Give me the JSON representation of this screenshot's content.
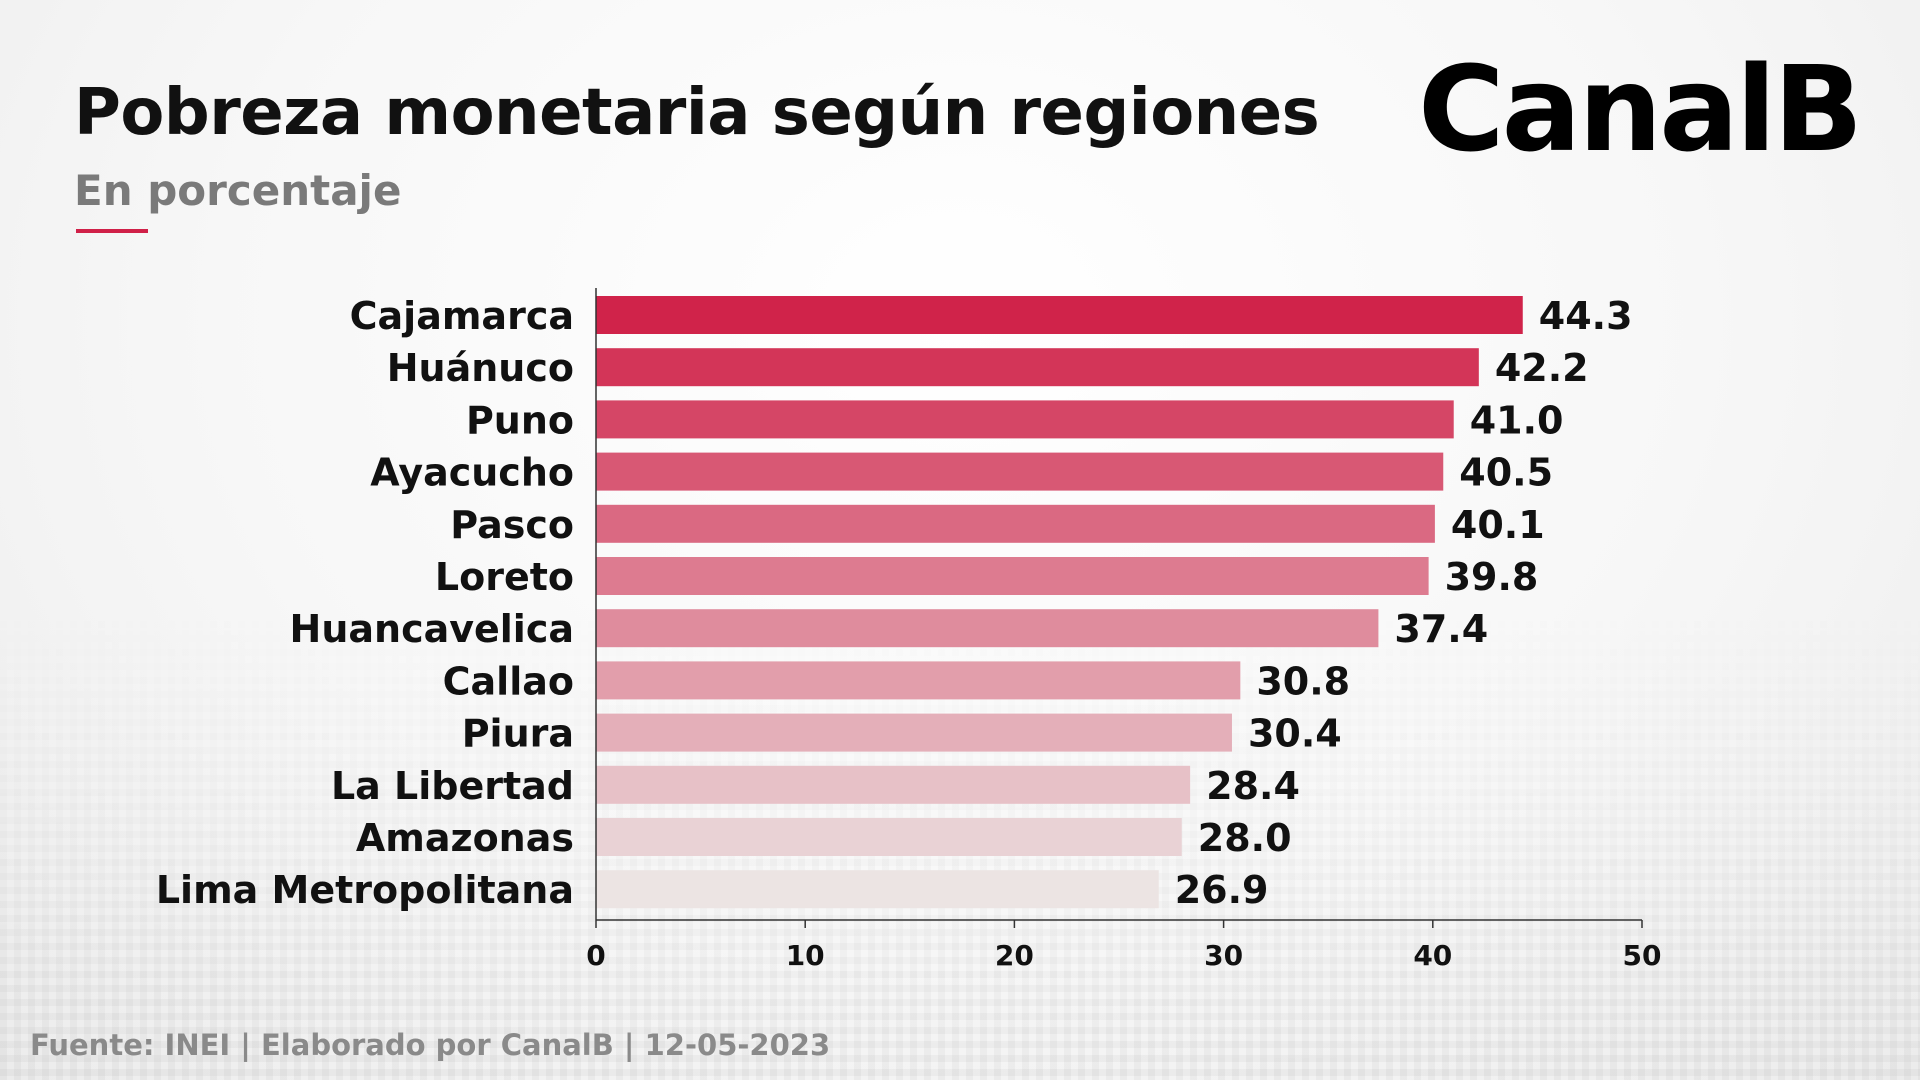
{
  "header": {
    "title": "Pobreza monetaria según regiones",
    "subtitle": "En porcentaje",
    "logo_text": "CanalB"
  },
  "footer": {
    "source": "Fuente: INEI | Elaborado por CanalB | 12-05-2023"
  },
  "colors": {
    "accent": "#d02048",
    "bar_max": "#d0234a",
    "bar_min": "#ece4e3"
  },
  "chart_data": {
    "type": "bar",
    "orientation": "horizontal",
    "categories": [
      "Cajamarca",
      "Huánuco",
      "Puno",
      "Ayacucho",
      "Pasco",
      "Loreto",
      "Huancavelica",
      "Callao",
      "Piura",
      "La Libertad",
      "Amazonas",
      "Lima Metropolitana"
    ],
    "values": [
      44.3,
      42.2,
      41.0,
      40.5,
      40.1,
      39.8,
      37.4,
      30.8,
      30.4,
      28.4,
      28.0,
      26.9
    ],
    "value_labels": [
      "44.3",
      "42.2",
      "41.0",
      "40.5",
      "40.1",
      "39.8",
      "37.4",
      "30.8",
      "30.4",
      "28.4",
      "28.0",
      "26.9"
    ],
    "xlim": [
      0,
      50
    ],
    "xticks": [
      "0",
      "10",
      "20",
      "30",
      "40",
      "50"
    ],
    "grid": false
  }
}
